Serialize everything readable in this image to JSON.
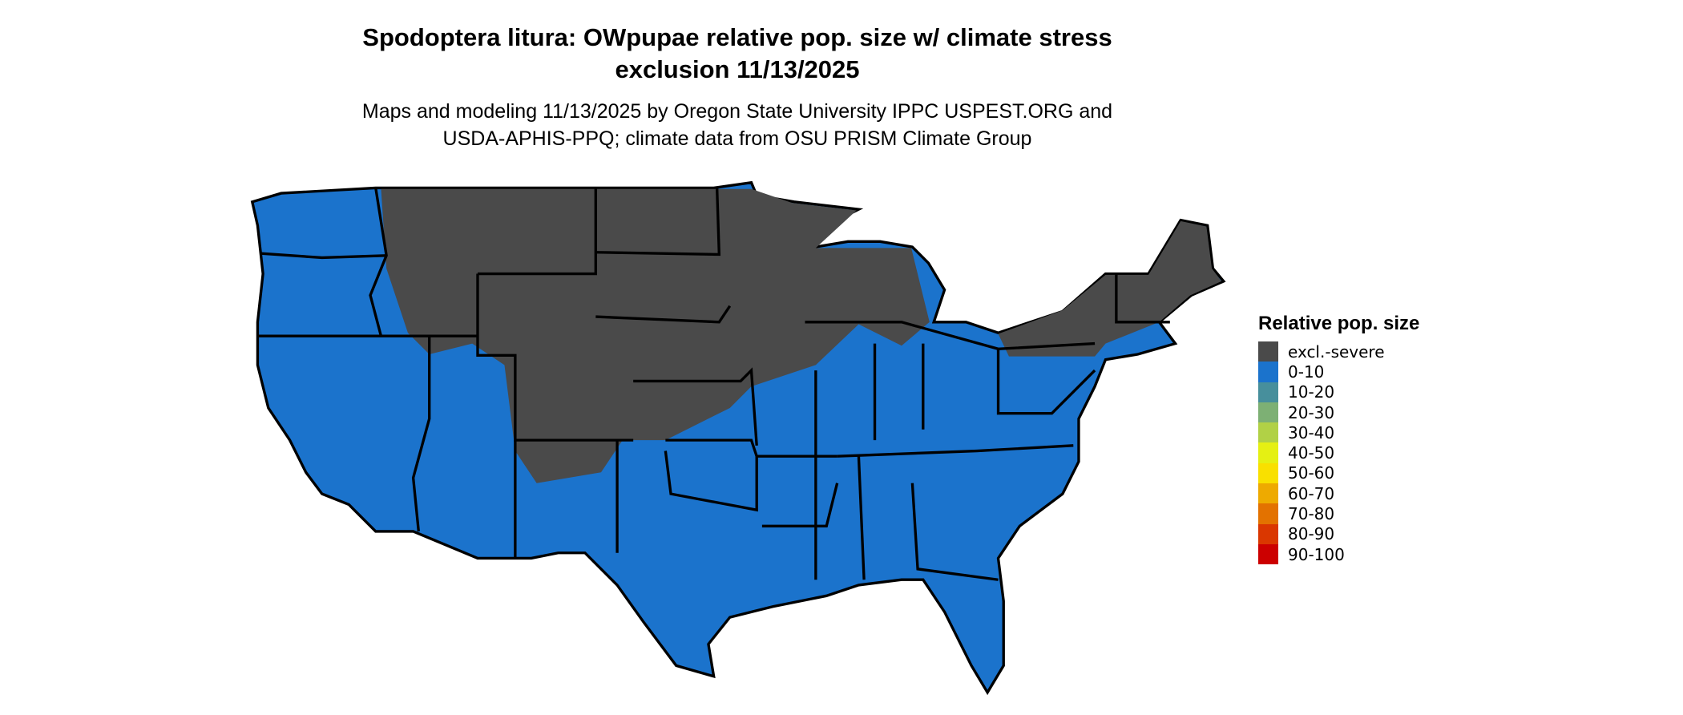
{
  "title": {
    "line1": "Spodoptera litura: OWpupae relative pop. size w/ climate stress",
    "line2": "exclusion 11/13/2025"
  },
  "subtitle": {
    "line1": "Maps and modeling 11/13/2025 by Oregon State University IPPC USPEST.ORG and",
    "line2": "USDA-APHIS-PPQ; climate data from OSU PRISM Climate Group"
  },
  "map": {
    "region": "Contiguous United States",
    "colors": {
      "excluded": "#4a4a4a",
      "low": "#1b73cc",
      "border": "#000000"
    }
  },
  "legend": {
    "title": "Relative pop. size",
    "items": [
      {
        "label": "excl.-severe",
        "color": "#4a4a4a"
      },
      {
        "label": "0-10",
        "color": "#1b73cc"
      },
      {
        "label": "10-20",
        "color": "#478f9c"
      },
      {
        "label": "20-30",
        "color": "#7db074"
      },
      {
        "label": "30-40",
        "color": "#b1d146"
      },
      {
        "label": "40-50",
        "color": "#e5f013"
      },
      {
        "label": "50-60",
        "color": "#f9e000"
      },
      {
        "label": "60-70",
        "color": "#eeaa00"
      },
      {
        "label": "70-80",
        "color": "#e37200"
      },
      {
        "label": "80-90",
        "color": "#da3700"
      },
      {
        "label": "90-100",
        "color": "#cc0000"
      }
    ]
  }
}
